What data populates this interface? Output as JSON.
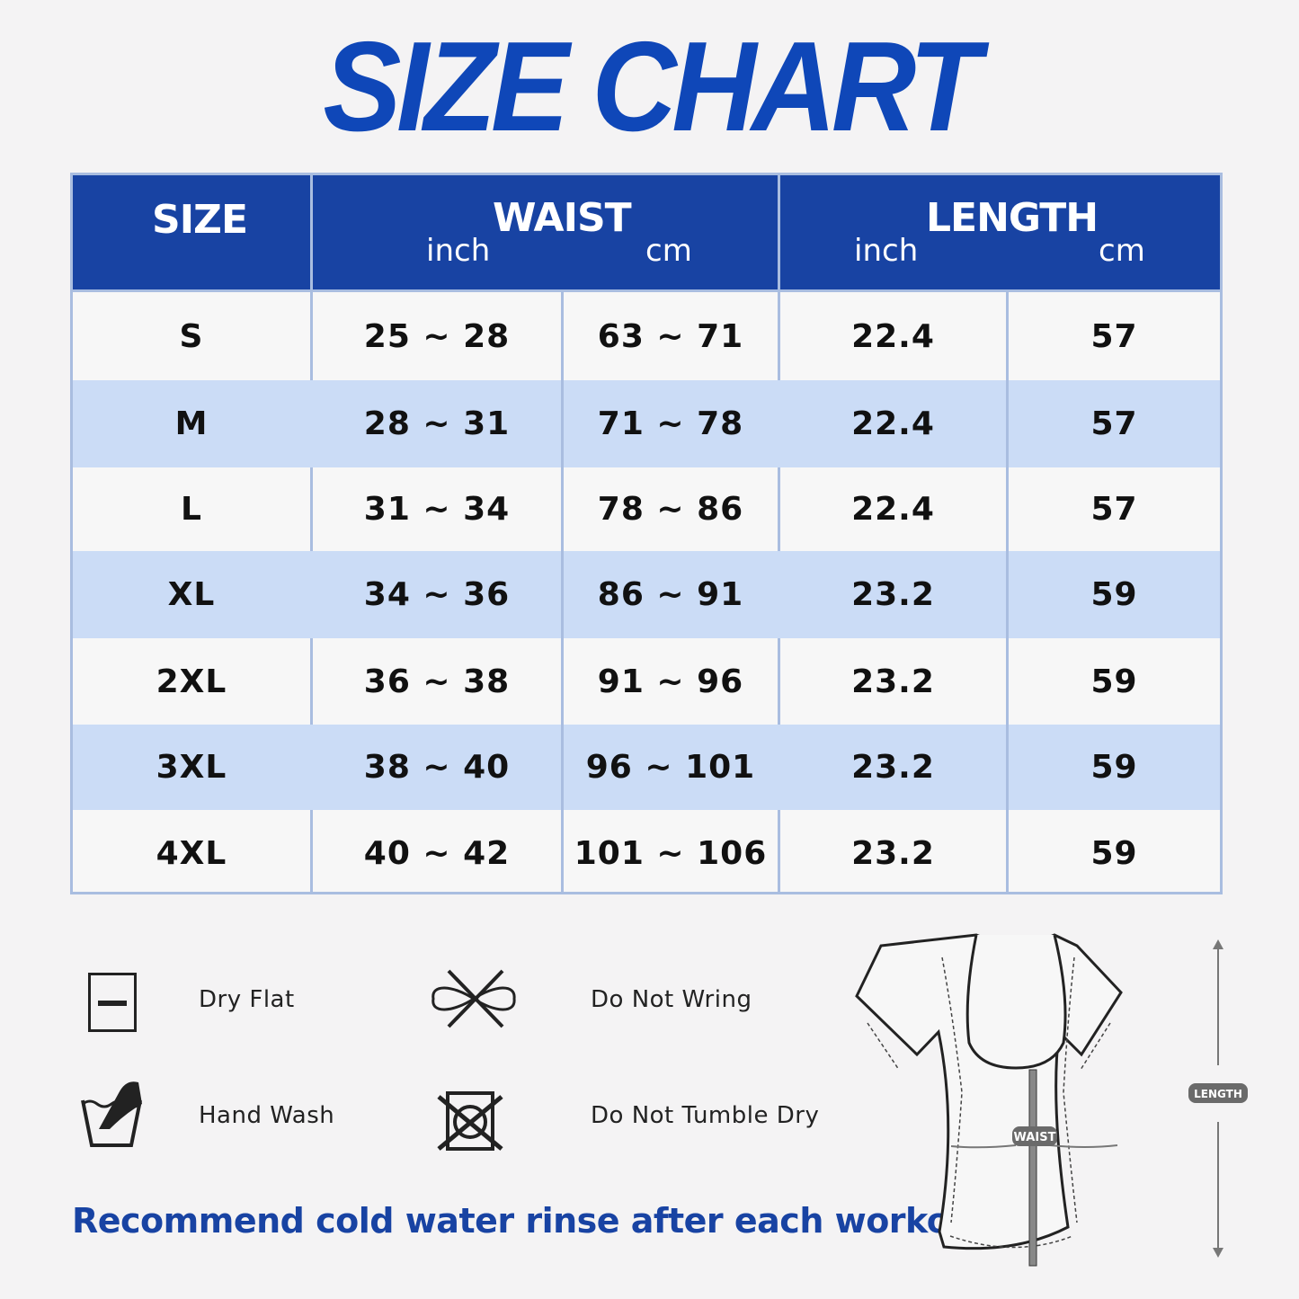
{
  "title": "SIZE CHART",
  "table": {
    "headers": {
      "size": "SIZE",
      "waist": "WAIST",
      "length": "LENGTH",
      "inch": "inch",
      "cm": "cm"
    },
    "rows": [
      {
        "size": "S",
        "waist_inch": "25 ~ 28",
        "waist_cm": "63 ~ 71",
        "length_inch": "22.4",
        "length_cm": "57"
      },
      {
        "size": "M",
        "waist_inch": "28 ~ 31",
        "waist_cm": "71 ~ 78",
        "length_inch": "22.4",
        "length_cm": "57"
      },
      {
        "size": "L",
        "waist_inch": "31 ~ 34",
        "waist_cm": "78 ~ 86",
        "length_inch": "22.4",
        "length_cm": "57"
      },
      {
        "size": "XL",
        "waist_inch": "34 ~ 36",
        "waist_cm": "86 ~ 91",
        "length_inch": "23.2",
        "length_cm": "59"
      },
      {
        "size": "2XL",
        "waist_inch": "36 ~ 38",
        "waist_cm": "91 ~ 96",
        "length_inch": "23.2",
        "length_cm": "59"
      },
      {
        "size": "3XL",
        "waist_inch": "38 ~ 40",
        "waist_cm": "96 ~ 101",
        "length_inch": "23.2",
        "length_cm": "59"
      },
      {
        "size": "4XL",
        "waist_inch": "40 ~ 42",
        "waist_cm": "101 ~ 106",
        "length_inch": "23.2",
        "length_cm": "59"
      }
    ]
  },
  "care": [
    {
      "icon": "dry-flat-icon",
      "label": "Dry Flat"
    },
    {
      "icon": "do-not-wring-icon",
      "label": "Do Not Wring"
    },
    {
      "icon": "hand-wash-icon",
      "label": "Hand Wash"
    },
    {
      "icon": "do-not-tumble-dry-icon",
      "label": "Do Not Tumble Dry"
    }
  ],
  "note": "Recommend cold water rinse after each workout.",
  "diagram": {
    "waist_label": "WAIST",
    "length_label": "LENGTH"
  },
  "colors": {
    "header": "#1843a3",
    "stripe": "#cbdcf6",
    "title": "#0f47b8"
  }
}
